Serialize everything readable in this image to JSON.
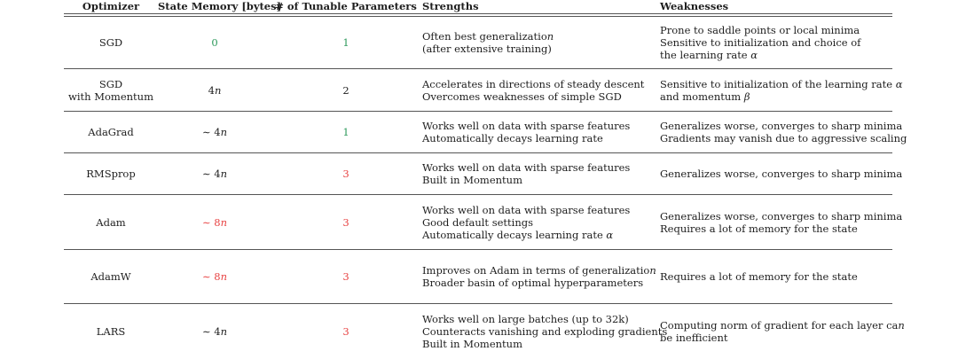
{
  "headers": {
    "optimizer": "Optimizer",
    "memory": "State Memory [bytes]",
    "params": "# of Tunable Parameters",
    "strengths": "Strengths",
    "weaknesses": "Weaknesses"
  },
  "colors": {
    "good": "#2e9a5c",
    "bad": "#e84343",
    "neutral": "#1e1e1e"
  },
  "rows": [
    {
      "optimizer": [
        "SGD"
      ],
      "memory": "0",
      "memory_color": "good",
      "params": "1",
      "params_color": "good",
      "strengths": [
        "Often best generalization",
        "(after extensive training)"
      ],
      "weaknesses": [
        "Prone to saddle points or local minima",
        "Sensitive to initialization and choice of",
        "the learning rate α"
      ]
    },
    {
      "optimizer": [
        "SGD",
        "with Momentum"
      ],
      "memory": "4n",
      "memory_color": "neutral",
      "params": "2",
      "params_color": "neutral",
      "strengths": [
        "Accelerates in directions of steady descent",
        "Overcomes weaknesses of simple SGD"
      ],
      "weaknesses": [
        "Sensitive to initialization of the learning rate α",
        "and momentum β"
      ]
    },
    {
      "optimizer": [
        "AdaGrad"
      ],
      "memory": "∼ 4n",
      "memory_color": "neutral",
      "params": "1",
      "params_color": "good",
      "strengths": [
        " Works well on data with sparse features",
        " Automatically decays learning rate"
      ],
      "weaknesses": [
        "Generalizes worse, converges to sharp minima",
        "Gradients may vanish due to aggressive scaling"
      ]
    },
    {
      "optimizer": [
        "RMSprop"
      ],
      "memory": "∼ 4n",
      "memory_color": "neutral",
      "params": "3",
      "params_color": "bad",
      "strengths": [
        "Works well on data with sparse features",
        "Built in Momentum"
      ],
      "weaknesses": [
        "Generalizes worse, converges to sharp minima"
      ]
    },
    {
      "optimizer": [
        "Adam"
      ],
      "memory": "∼ 8n",
      "memory_color": "bad",
      "params": "3",
      "params_color": "bad",
      "strengths": [
        "Works well on data with sparse features",
        "Good default settings",
        "Automatically decays learning rate α"
      ],
      "weaknesses": [
        "Generalizes worse, converges to sharp minima",
        "Requires a lot of memory for the state"
      ]
    },
    {
      "optimizer": [
        "AdamW"
      ],
      "memory": "∼ 8n",
      "memory_color": "bad",
      "params": "3",
      "params_color": "bad",
      "strengths": [
        "Improves on Adam in terms of generalization",
        "Broader basin of optimal hyperparameters"
      ],
      "weaknesses": [
        "Requires a lot of memory for the state"
      ]
    },
    {
      "optimizer": [
        "LARS"
      ],
      "memory": "∼ 4n",
      "memory_color": "neutral",
      "params": "3",
      "params_color": "bad",
      "strengths": [
        "Works well on large batches (up to 32k)",
        "Counteracts vanishing and exploding gradients",
        "Built in Momentum"
      ],
      "weaknesses": [
        "Computing norm of gradient for each layer can",
        "be inefficient"
      ]
    }
  ]
}
